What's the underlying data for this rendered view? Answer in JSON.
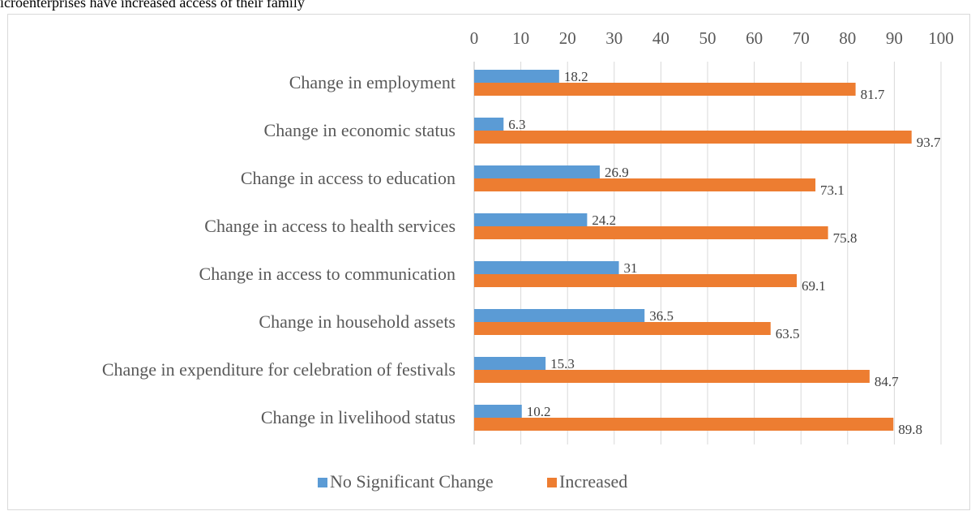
{
  "caption": "icroenterprises have increased access of their family",
  "chart_data": {
    "type": "bar",
    "orientation": "horizontal",
    "categories": [
      "Change in employment",
      "Change in economic status",
      "Change in access to education",
      "Change in access to health services",
      "Change in access to communication",
      "Change in household assets",
      "Change in expenditure for celebration of festivals",
      "Change in livelihood status"
    ],
    "series": [
      {
        "name": "No Significant Change",
        "color": "#5b9bd5",
        "values": [
          18.2,
          6.3,
          26.9,
          24.2,
          31,
          36.5,
          15.3,
          10.2
        ]
      },
      {
        "name": "Increased",
        "color": "#ed7d31",
        "values": [
          81.7,
          93.7,
          73.1,
          75.8,
          69.1,
          63.5,
          84.7,
          89.8
        ]
      }
    ],
    "xlim": [
      0,
      100
    ],
    "xticks": [
      0,
      10,
      20,
      30,
      40,
      50,
      60,
      70,
      80,
      90,
      100
    ],
    "x_axis_position": "top",
    "grid": true,
    "legend_position": "bottom"
  }
}
